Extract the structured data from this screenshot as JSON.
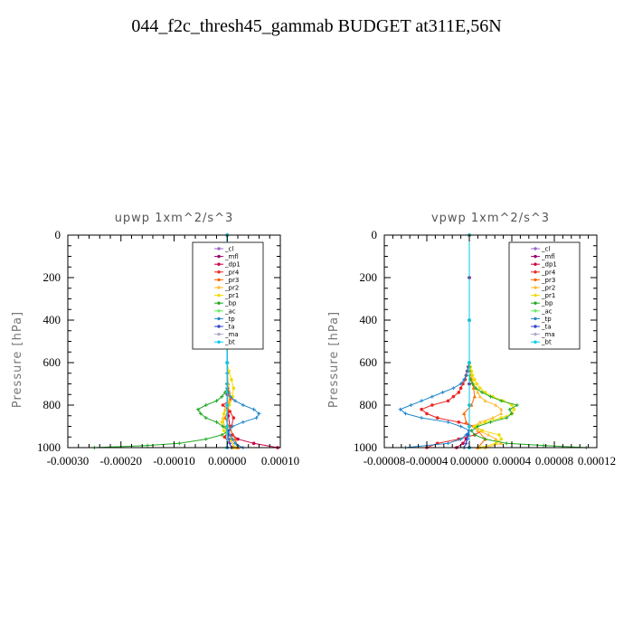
{
  "figure_title": "044_f2c_thresh45_gammab  BUDGET at311E,56N",
  "chart_data": [
    {
      "type": "line",
      "title": "upwp   1xm^2/s^3",
      "ylabel": "Pressure [hPa]",
      "xlim": [
        -0.0003,
        0.0001
      ],
      "ylim": [
        1000,
        0
      ],
      "x_ticks": [
        "-0.00030",
        "-0.00020",
        "-0.00010",
        "0.00000",
        "0.00010"
      ],
      "x_tick_values": [
        -0.0003,
        -0.0002,
        -0.0001,
        0.0,
        0.0001
      ],
      "y_ticks": [
        "0",
        "200",
        "400",
        "600",
        "800",
        "1000"
      ],
      "y_tick_values": [
        0,
        200,
        400,
        600,
        800,
        1000
      ],
      "legend_placement": "top-right",
      "series": [
        {
          "name": "_cl",
          "color": "#9966cc",
          "pressure": [
            1000,
            900,
            800,
            700,
            600,
            400,
            200,
            0
          ],
          "values": [
            0,
            0,
            0,
            0,
            0,
            0,
            0,
            0
          ]
        },
        {
          "name": "_mfl",
          "color": "#990066",
          "pressure": [
            1000,
            900,
            800,
            700,
            600,
            400,
            200,
            0
          ],
          "values": [
            0,
            0,
            0,
            0,
            0,
            0,
            0,
            0
          ]
        },
        {
          "name": "_dp1",
          "color": "#cc0044",
          "pressure": [
            1000,
            980,
            960,
            940,
            900,
            850,
            800,
            750,
            700,
            600,
            400,
            0
          ],
          "values": [
            9.5e-05,
            5e-05,
            2e-05,
            1e-05,
            5e-06,
            2e-06,
            1e-06,
            0,
            0,
            0,
            0,
            0
          ]
        },
        {
          "name": "_pr4",
          "color": "#ee2222",
          "pressure": [
            1000,
            950,
            900,
            860,
            830,
            800,
            770,
            740,
            700,
            600,
            400,
            0
          ],
          "values": [
            1e-05,
            -5e-06,
            8e-06,
            1.2e-05,
            5e-06,
            -8e-06,
            8e-06,
            3e-06,
            0,
            0,
            0,
            0
          ]
        },
        {
          "name": "_pr3",
          "color": "#ff6600",
          "pressure": [
            1000,
            960,
            900,
            860,
            820,
            780,
            740,
            700,
            600,
            400,
            0
          ],
          "values": [
            2e-05,
            1.5e-05,
            3e-06,
            -4e-06,
            2e-06,
            4e-06,
            2e-06,
            0,
            0,
            0,
            0
          ]
        },
        {
          "name": "_pr2",
          "color": "#ffbb33",
          "pressure": [
            1000,
            960,
            900,
            860,
            820,
            780,
            740,
            700,
            600,
            400,
            0
          ],
          "values": [
            1.2e-05,
            8e-06,
            -5e-06,
            -8e-06,
            -4e-06,
            3e-06,
            5e-06,
            2e-06,
            0,
            0,
            0
          ]
        },
        {
          "name": "_pr1",
          "color": "#eedd00",
          "pressure": [
            1000,
            960,
            920,
            880,
            840,
            800,
            760,
            720,
            680,
            640,
            600,
            400,
            0
          ],
          "values": [
            1.5e-05,
            5e-06,
            -6e-06,
            -1e-05,
            -6e-06,
            4e-06,
            1e-05,
            1.2e-05,
            8e-06,
            3e-06,
            0,
            0,
            0
          ]
        },
        {
          "name": "_bp",
          "color": "#22aa22",
          "pressure": [
            1000,
            990,
            980,
            960,
            940,
            920,
            900,
            880,
            860,
            840,
            820,
            800,
            780,
            760,
            740,
            720,
            700,
            650,
            600,
            400,
            0
          ],
          "values": [
            -0.00025,
            -0.00015,
            -9e-05,
            -4e-05,
            -1e-05,
            3e-06,
            -8e-06,
            -2e-05,
            -4e-05,
            -5e-05,
            -5.5e-05,
            -4e-05,
            -2e-05,
            -1e-05,
            -4e-06,
            0,
            0,
            0,
            0,
            0,
            0
          ]
        },
        {
          "name": "_ac",
          "color": "#66ee66",
          "pressure": [
            1000,
            900,
            800,
            700,
            600,
            400,
            0
          ],
          "values": [
            0,
            0,
            0,
            0,
            0,
            0,
            0
          ]
        },
        {
          "name": "_tp",
          "color": "#2288cc",
          "pressure": [
            1000,
            990,
            980,
            960,
            940,
            920,
            900,
            880,
            860,
            840,
            820,
            800,
            780,
            760,
            740,
            720,
            700,
            650,
            600,
            400,
            0
          ],
          "values": [
            3e-05,
            2e-05,
            1.5e-05,
            1e-05,
            5e-06,
            3e-06,
            1e-05,
            3e-05,
            5.5e-05,
            6e-05,
            5e-05,
            3e-05,
            1.5e-05,
            6e-06,
            2e-06,
            0,
            0,
            0,
            0,
            0,
            0
          ]
        },
        {
          "name": "_ta",
          "color": "#3344cc",
          "pressure": [
            1000,
            980,
            960,
            940,
            920,
            900,
            800,
            600,
            400,
            0
          ],
          "values": [
            8e-06,
            5e-06,
            3e-06,
            2e-06,
            1e-06,
            0,
            0,
            0,
            0,
            0
          ]
        },
        {
          "name": "_ma",
          "color": "#aaaacc",
          "pressure": [
            1000,
            900,
            800,
            600,
            400,
            0
          ],
          "values": [
            0,
            0,
            0,
            0,
            0,
            0
          ]
        },
        {
          "name": "_bt",
          "color": "#00ccee",
          "pressure": [
            1000,
            900,
            800,
            600,
            400,
            0
          ],
          "values": [
            0,
            0,
            0,
            0,
            0,
            0
          ]
        }
      ]
    },
    {
      "type": "line",
      "title": "vpwp   1xm^2/s^3",
      "ylabel": "Pressure [hPa]",
      "xlim": [
        -8e-05,
        0.00012
      ],
      "ylim": [
        1000,
        0
      ],
      "x_ticks": [
        "-0.00008",
        "-0.00004",
        "0.00000",
        "0.00004",
        "0.00008",
        "0.00012"
      ],
      "x_tick_values": [
        -8e-05,
        -4e-05,
        0.0,
        4e-05,
        8e-05,
        0.00012
      ],
      "y_ticks": [
        "0",
        "200",
        "400",
        "600",
        "800",
        "1000"
      ],
      "y_tick_values": [
        0,
        200,
        400,
        600,
        800,
        1000
      ],
      "legend_placement": "top-right",
      "series": [
        {
          "name": "_cl",
          "color": "#9966cc",
          "pressure": [
            1000,
            900,
            800,
            700,
            600,
            400,
            200,
            0
          ],
          "values": [
            0,
            0,
            0,
            0,
            0,
            0,
            0,
            0
          ]
        },
        {
          "name": "_mfl",
          "color": "#990066",
          "pressure": [
            1000,
            900,
            800,
            700,
            600,
            400,
            200,
            0
          ],
          "values": [
            0,
            0,
            0,
            0,
            0,
            0,
            0,
            0
          ]
        },
        {
          "name": "_dp1",
          "color": "#cc0044",
          "pressure": [
            1000,
            980,
            960,
            940,
            900,
            800,
            600,
            400,
            0
          ],
          "values": [
            -1.2e-05,
            -6e-06,
            -3e-06,
            -1e-06,
            0,
            0,
            0,
            0,
            0
          ]
        },
        {
          "name": "_pr4",
          "color": "#ee2222",
          "pressure": [
            1000,
            980,
            960,
            940,
            920,
            900,
            880,
            860,
            840,
            820,
            800,
            780,
            760,
            740,
            720,
            700,
            680,
            660,
            640,
            620,
            600,
            400,
            0
          ],
          "values": [
            -4e-05,
            -3e-05,
            -1e-05,
            5e-06,
            1.2e-05,
            5e-06,
            -1e-05,
            -3e-05,
            -4e-05,
            -4.5e-05,
            -3.5e-05,
            -2e-05,
            -1.5e-05,
            -1e-05,
            -8e-06,
            -6e-06,
            -4e-06,
            -3e-06,
            -2e-06,
            -1e-06,
            0,
            0,
            0
          ]
        },
        {
          "name": "_pr3",
          "color": "#ff6600",
          "pressure": [
            1000,
            960,
            920,
            880,
            840,
            800,
            760,
            720,
            680,
            640,
            600,
            400,
            0
          ],
          "values": [
            8e-06,
            1.5e-05,
            8e-06,
            -3e-06,
            -5e-06,
            2e-06,
            5e-06,
            4e-06,
            2e-06,
            1e-06,
            0,
            0,
            0
          ]
        },
        {
          "name": "_pr2",
          "color": "#ffbb33",
          "pressure": [
            1000,
            980,
            960,
            940,
            920,
            900,
            880,
            860,
            840,
            820,
            800,
            780,
            760,
            740,
            720,
            700,
            680,
            660,
            640,
            620,
            600,
            400,
            0
          ],
          "values": [
            1.5e-05,
            3e-05,
            2.5e-05,
            1.8e-05,
            8e-06,
            4e-06,
            1e-05,
            2.2e-05,
            3e-05,
            3e-05,
            2.5e-05,
            1.5e-05,
            1e-05,
            8e-06,
            6e-06,
            4e-06,
            3e-06,
            2e-06,
            1e-06,
            5e-07,
            0,
            0,
            0
          ]
        },
        {
          "name": "_pr1",
          "color": "#eedd00",
          "pressure": [
            1000,
            980,
            960,
            940,
            920,
            900,
            880,
            860,
            840,
            820,
            800,
            780,
            760,
            740,
            720,
            700,
            680,
            660,
            640,
            620,
            600,
            400,
            0
          ],
          "values": [
            1e-05,
            2.5e-05,
            3e-05,
            2.8e-05,
            1.2e-05,
            5e-06,
            1.5e-05,
            3e-05,
            4e-05,
            4.2e-05,
            4e-05,
            3.2e-05,
            2.2e-05,
            1.5e-05,
            1e-05,
            7e-06,
            5e-06,
            3e-06,
            2e-06,
            1e-06,
            0,
            0,
            0
          ]
        },
        {
          "name": "_bp",
          "color": "#22aa22",
          "pressure": [
            1000,
            990,
            980,
            960,
            940,
            920,
            900,
            880,
            860,
            840,
            820,
            800,
            780,
            760,
            740,
            720,
            700,
            680,
            660,
            640,
            620,
            600,
            400,
            0
          ],
          "values": [
            0.00011,
            7e-05,
            3.5e-05,
            1.5e-05,
            5e-06,
            2e-06,
            8e-06,
            2e-05,
            3.5e-05,
            4e-05,
            3.8e-05,
            4.5e-05,
            3e-05,
            2e-05,
            1.2e-05,
            6e-06,
            3e-06,
            1e-06,
            0,
            0,
            0,
            0,
            0,
            0
          ]
        },
        {
          "name": "_ac",
          "color": "#66ee66",
          "pressure": [
            1000,
            900,
            800,
            600,
            400,
            0
          ],
          "values": [
            0,
            0,
            0,
            0,
            0,
            0
          ]
        },
        {
          "name": "_tp",
          "color": "#2288cc",
          "pressure": [
            1000,
            990,
            980,
            960,
            940,
            920,
            900,
            880,
            860,
            840,
            820,
            800,
            780,
            760,
            740,
            720,
            700,
            680,
            660,
            640,
            620,
            600,
            400,
            0
          ],
          "values": [
            -6e-05,
            -4e-05,
            -2e-05,
            -8e-06,
            -3e-06,
            0,
            -8e-06,
            -2e-05,
            -4.5e-05,
            -6e-05,
            -6.5e-05,
            -5.5e-05,
            -4.5e-05,
            -3.5e-05,
            -2.5e-05,
            -1.5e-05,
            -8e-06,
            -5e-06,
            -3e-06,
            -2e-06,
            -1e-06,
            0,
            0,
            0
          ]
        },
        {
          "name": "_ta",
          "color": "#3344cc",
          "pressure": [
            1000,
            980,
            960,
            940,
            920,
            900,
            800,
            600,
            400,
            0
          ],
          "values": [
            -5e-06,
            -3e-06,
            -2e-06,
            -1e-06,
            0,
            0,
            0,
            0,
            0,
            0
          ]
        },
        {
          "name": "_ma",
          "color": "#aaaacc",
          "pressure": [
            1000,
            900,
            800,
            600,
            400,
            0
          ],
          "values": [
            0,
            0,
            0,
            0,
            0,
            0
          ]
        },
        {
          "name": "_bt",
          "color": "#00ccee",
          "pressure": [
            1000,
            900,
            800,
            600,
            400,
            0
          ],
          "values": [
            0,
            0,
            0,
            0,
            0,
            0
          ]
        }
      ]
    }
  ]
}
